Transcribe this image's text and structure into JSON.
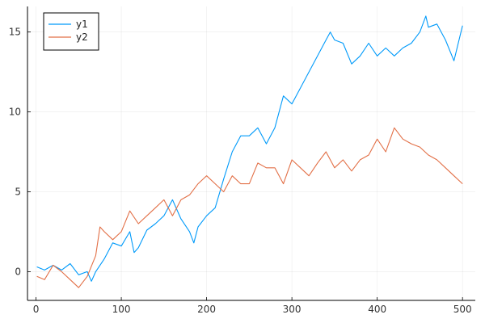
{
  "chart_data": {
    "type": "line",
    "title": "",
    "xlabel": "",
    "ylabel": "",
    "xlim": [
      -10,
      515
    ],
    "ylim": [
      -1.8,
      16.6
    ],
    "grid": true,
    "legend_position": "top-left",
    "x_ticks": [
      0,
      100,
      200,
      300,
      400,
      500
    ],
    "y_ticks": [
      0,
      5,
      10,
      15
    ],
    "x_tick_labels": [
      "0",
      "100",
      "200",
      "300",
      "400",
      "500"
    ],
    "y_tick_labels": [
      "0",
      "5",
      "10",
      "15"
    ],
    "series": [
      {
        "name": "y1",
        "color": "#009AFA",
        "x": [
          1,
          10,
          20,
          30,
          40,
          50,
          60,
          65,
          70,
          80,
          90,
          100,
          110,
          115,
          120,
          130,
          140,
          150,
          160,
          170,
          180,
          185,
          190,
          200,
          210,
          220,
          230,
          240,
          250,
          260,
          270,
          280,
          290,
          300,
          310,
          320,
          330,
          340,
          345,
          350,
          360,
          370,
          380,
          390,
          400,
          410,
          420,
          430,
          440,
          450,
          457,
          460,
          470,
          480,
          490,
          500
        ],
        "y": [
          0.3,
          0.1,
          0.4,
          0.1,
          0.5,
          -0.2,
          0.0,
          -0.6,
          0.0,
          0.8,
          1.8,
          1.6,
          2.5,
          1.2,
          1.5,
          2.6,
          3.0,
          3.5,
          4.5,
          3.3,
          2.5,
          1.8,
          2.8,
          3.5,
          4.0,
          5.8,
          7.5,
          8.5,
          8.5,
          9.0,
          8.0,
          9.0,
          11.0,
          10.5,
          11.5,
          12.5,
          13.5,
          14.5,
          15.0,
          14.5,
          14.3,
          13.0,
          13.5,
          14.3,
          13.5,
          14.0,
          13.5,
          14.0,
          14.3,
          15.0,
          16.0,
          15.3,
          15.5,
          14.5,
          13.2,
          15.4
        ]
      },
      {
        "name": "y2",
        "color": "#E26F46",
        "x": [
          1,
          10,
          20,
          30,
          40,
          50,
          60,
          70,
          75,
          80,
          90,
          100,
          110,
          120,
          130,
          140,
          150,
          160,
          170,
          180,
          190,
          200,
          210,
          220,
          230,
          240,
          250,
          260,
          270,
          280,
          290,
          300,
          310,
          320,
          330,
          340,
          350,
          360,
          370,
          380,
          390,
          400,
          410,
          420,
          430,
          440,
          450,
          460,
          470,
          480,
          490,
          500
        ],
        "y": [
          -0.3,
          -0.5,
          0.4,
          0.0,
          -0.5,
          -1.0,
          -0.3,
          1.0,
          2.8,
          2.5,
          2.0,
          2.5,
          3.8,
          3.0,
          3.5,
          4.0,
          4.5,
          3.5,
          4.5,
          4.8,
          5.5,
          6.0,
          5.5,
          5.0,
          6.0,
          5.5,
          5.5,
          6.8,
          6.5,
          6.5,
          5.5,
          7.0,
          6.5,
          6.0,
          6.8,
          7.5,
          6.5,
          7.0,
          6.3,
          7.0,
          7.3,
          8.3,
          7.5,
          9.0,
          8.3,
          8.0,
          7.8,
          7.3,
          7.0,
          6.5,
          6.0,
          5.5
        ]
      }
    ]
  }
}
